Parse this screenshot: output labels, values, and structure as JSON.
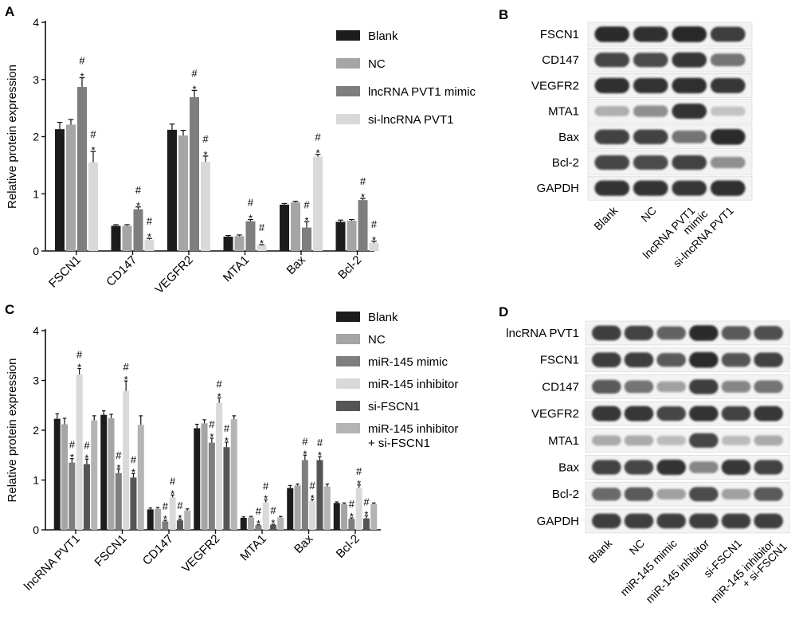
{
  "colors": {
    "blank": "#1c1c1c",
    "nc": "#a5a5a5",
    "mimic": "#7e7e7e",
    "inhibitor": "#d9d9d9",
    "sifscn1": "#555555",
    "combo": "#b4b4b4",
    "band": "#1a1a1a",
    "blot_bg": "#f3f3f3"
  },
  "panels": {
    "A": {
      "label": "A",
      "chart_data": {
        "type": "bar",
        "ylabel": "Relative protein expression",
        "ylim": [
          0,
          4
        ],
        "yticks": [
          "0",
          "1",
          "2",
          "3",
          "4"
        ],
        "categories": [
          "FSCN1",
          "CD147",
          "VEGFR2",
          "MTA1",
          "Bax",
          "Bcl-2"
        ],
        "series": [
          {
            "name": "Blank",
            "color_key": "blank",
            "values": [
              2.13,
              0.44,
              2.12,
              0.25,
              0.81,
              0.51
            ],
            "errors": [
              0.12,
              0.02,
              0.1,
              0.02,
              0.02,
              0.03
            ]
          },
          {
            "name": "NC",
            "color_key": "nc",
            "values": [
              2.21,
              0.44,
              2.02,
              0.26,
              0.85,
              0.53
            ],
            "errors": [
              0.09,
              0.02,
              0.09,
              0.02,
              0.02,
              0.02
            ]
          },
          {
            "name": "lncRNA PVT1 mimic",
            "color_key": "mimic",
            "values": [
              2.87,
              0.73,
              2.69,
              0.52,
              0.41,
              0.89
            ],
            "errors": [
              0.16,
              0.04,
              0.12,
              0.03,
              0.1,
              0.03
            ]
          },
          {
            "name": "si-lncRNA PVT1",
            "color_key": "inhibitor",
            "values": [
              1.55,
              0.2,
              1.56,
              0.1,
              1.65,
              0.14
            ],
            "errors": [
              0.19,
              0.02,
              0.1,
              0.01,
              0.04,
              0.03
            ]
          }
        ],
        "annotations": [
          {
            "cat": 0,
            "ser": 2,
            "text": [
              "#",
              "*"
            ]
          },
          {
            "cat": 0,
            "ser": 3,
            "text": [
              "#",
              "*"
            ]
          },
          {
            "cat": 1,
            "ser": 2,
            "text": [
              "#",
              "*"
            ]
          },
          {
            "cat": 1,
            "ser": 3,
            "text": [
              "#",
              "*"
            ]
          },
          {
            "cat": 2,
            "ser": 2,
            "text": [
              "#",
              "*"
            ]
          },
          {
            "cat": 2,
            "ser": 3,
            "text": [
              "#",
              "*"
            ]
          },
          {
            "cat": 3,
            "ser": 2,
            "text": [
              "#",
              "*"
            ]
          },
          {
            "cat": 3,
            "ser": 3,
            "text": [
              "#",
              "*"
            ]
          },
          {
            "cat": 4,
            "ser": 2,
            "text": [
              "#",
              "*"
            ]
          },
          {
            "cat": 4,
            "ser": 3,
            "text": [
              "#",
              "*"
            ]
          },
          {
            "cat": 5,
            "ser": 2,
            "text": [
              "#",
              "*"
            ]
          },
          {
            "cat": 5,
            "ser": 3,
            "text": [
              "#",
              "*"
            ]
          }
        ]
      }
    },
    "B": {
      "label": "B",
      "rows": [
        "FSCN1",
        "CD147",
        "VEGFR2",
        "MTA1",
        "Bax",
        "Bcl-2",
        "GAPDH"
      ],
      "lanes": [
        "Blank",
        "NC",
        "lncRNA PVT1\nmimic",
        "si-lncRNA PVT1"
      ],
      "intensity": [
        [
          0.95,
          0.92,
          0.97,
          0.85
        ],
        [
          0.8,
          0.78,
          0.88,
          0.55
        ],
        [
          0.92,
          0.9,
          0.93,
          0.88
        ],
        [
          0.22,
          0.4,
          0.9,
          0.12
        ],
        [
          0.82,
          0.82,
          0.55,
          0.95
        ],
        [
          0.8,
          0.78,
          0.82,
          0.4
        ],
        [
          0.9,
          0.9,
          0.88,
          0.92
        ]
      ]
    },
    "C": {
      "label": "C",
      "chart_data": {
        "type": "bar",
        "ylabel": "Relative protein expression",
        "ylim": [
          0,
          4
        ],
        "yticks": [
          "0",
          "1",
          "2",
          "3",
          "4"
        ],
        "categories": [
          "lncRNA PVT1",
          "FSCN1",
          "CD147",
          "VEGFR2",
          "MTA1",
          "Bax",
          "Bcl-2"
        ],
        "series": [
          {
            "name": "Blank",
            "color_key": "blank",
            "values": [
              2.23,
              2.31,
              0.41,
              2.04,
              0.24,
              0.84,
              0.54
            ],
            "errors": [
              0.1,
              0.08,
              0.03,
              0.08,
              0.02,
              0.05,
              0.02
            ]
          },
          {
            "name": "NC",
            "color_key": "nc",
            "values": [
              2.12,
              2.24,
              0.42,
              2.14,
              0.25,
              0.89,
              0.52
            ],
            "errors": [
              0.12,
              0.08,
              0.03,
              0.07,
              0.02,
              0.03,
              0.02
            ]
          },
          {
            "name": "miR-145 mimic",
            "color_key": "mimic",
            "values": [
              1.35,
              1.14,
              0.17,
              1.75,
              0.09,
              1.4,
              0.22
            ],
            "errors": [
              0.08,
              0.08,
              0.02,
              0.09,
              0.01,
              0.1,
              0.02
            ]
          },
          {
            "name": "miR-145 inhibitor",
            "color_key": "inhibitor",
            "values": [
              3.12,
              2.79,
              0.65,
              2.55,
              0.55,
              0.58,
              0.84
            ],
            "errors": [
              0.12,
              0.2,
              0.05,
              0.1,
              0.05,
              0.03,
              0.06
            ]
          },
          {
            "name": "si-FSCN1",
            "color_key": "sifscn1",
            "values": [
              1.32,
              1.05,
              0.19,
              1.66,
              0.1,
              1.4,
              0.23
            ],
            "errors": [
              0.1,
              0.08,
              0.02,
              0.1,
              0.01,
              0.07,
              0.05
            ]
          },
          {
            "name": "miR-145 inhibitor\n+ si-FSCN1",
            "color_key": "combo",
            "values": [
              2.2,
              2.11,
              0.39,
              2.22,
              0.25,
              0.87,
              0.52
            ],
            "errors": [
              0.09,
              0.18,
              0.03,
              0.07,
              0.02,
              0.05,
              0.02
            ]
          }
        ],
        "annotations": [
          {
            "cat": 0,
            "ser": 2,
            "text": [
              "#",
              "*"
            ]
          },
          {
            "cat": 0,
            "ser": 3,
            "text": [
              "#",
              "*"
            ]
          },
          {
            "cat": 0,
            "ser": 4,
            "text": [
              "#",
              "*"
            ]
          },
          {
            "cat": 1,
            "ser": 2,
            "text": [
              "#",
              "*"
            ]
          },
          {
            "cat": 1,
            "ser": 3,
            "text": [
              "#",
              "*"
            ]
          },
          {
            "cat": 1,
            "ser": 4,
            "text": [
              "#",
              "*"
            ]
          },
          {
            "cat": 2,
            "ser": 2,
            "text": [
              "#",
              "*"
            ]
          },
          {
            "cat": 2,
            "ser": 3,
            "text": [
              "#",
              "*"
            ]
          },
          {
            "cat": 2,
            "ser": 4,
            "text": [
              "#",
              "*"
            ]
          },
          {
            "cat": 3,
            "ser": 2,
            "text": [
              "#",
              "*"
            ]
          },
          {
            "cat": 3,
            "ser": 3,
            "text": [
              "#",
              "*"
            ]
          },
          {
            "cat": 3,
            "ser": 4,
            "text": [
              "#",
              "*"
            ]
          },
          {
            "cat": 4,
            "ser": 2,
            "text": [
              "#",
              "*"
            ]
          },
          {
            "cat": 4,
            "ser": 3,
            "text": [
              "#",
              "*"
            ]
          },
          {
            "cat": 4,
            "ser": 4,
            "text": [
              "#",
              "*"
            ]
          },
          {
            "cat": 5,
            "ser": 2,
            "text": [
              "#",
              "*"
            ]
          },
          {
            "cat": 5,
            "ser": 3,
            "text": [
              "#",
              "*"
            ]
          },
          {
            "cat": 5,
            "ser": 4,
            "text": [
              "#",
              "*"
            ]
          },
          {
            "cat": 6,
            "ser": 2,
            "text": [
              "#",
              "*"
            ]
          },
          {
            "cat": 6,
            "ser": 3,
            "text": [
              "#",
              "*"
            ]
          },
          {
            "cat": 6,
            "ser": 4,
            "text": [
              "#",
              "*"
            ]
          }
        ]
      }
    },
    "D": {
      "label": "D",
      "rows": [
        "lncRNA PVT1",
        "FSCN1",
        "CD147",
        "VEGFR2",
        "MTA1",
        "Bax",
        "Bcl-2",
        "GAPDH"
      ],
      "lanes": [
        "Blank",
        "NC",
        "miR-145 mimic",
        "miR-145 inhibitor",
        "si-FSCN1",
        "miR-145 inhibitor\n+ si-FSCN1"
      ],
      "intensity": [
        [
          0.85,
          0.82,
          0.65,
          0.95,
          0.7,
          0.75
        ],
        [
          0.85,
          0.85,
          0.7,
          0.95,
          0.72,
          0.82
        ],
        [
          0.7,
          0.55,
          0.3,
          0.85,
          0.45,
          0.55
        ],
        [
          0.88,
          0.88,
          0.8,
          0.9,
          0.82,
          0.88
        ],
        [
          0.25,
          0.25,
          0.15,
          0.8,
          0.15,
          0.25
        ],
        [
          0.82,
          0.8,
          0.9,
          0.45,
          0.88,
          0.82
        ],
        [
          0.6,
          0.7,
          0.3,
          0.78,
          0.3,
          0.7
        ],
        [
          0.85,
          0.85,
          0.85,
          0.85,
          0.85,
          0.85
        ]
      ]
    }
  }
}
